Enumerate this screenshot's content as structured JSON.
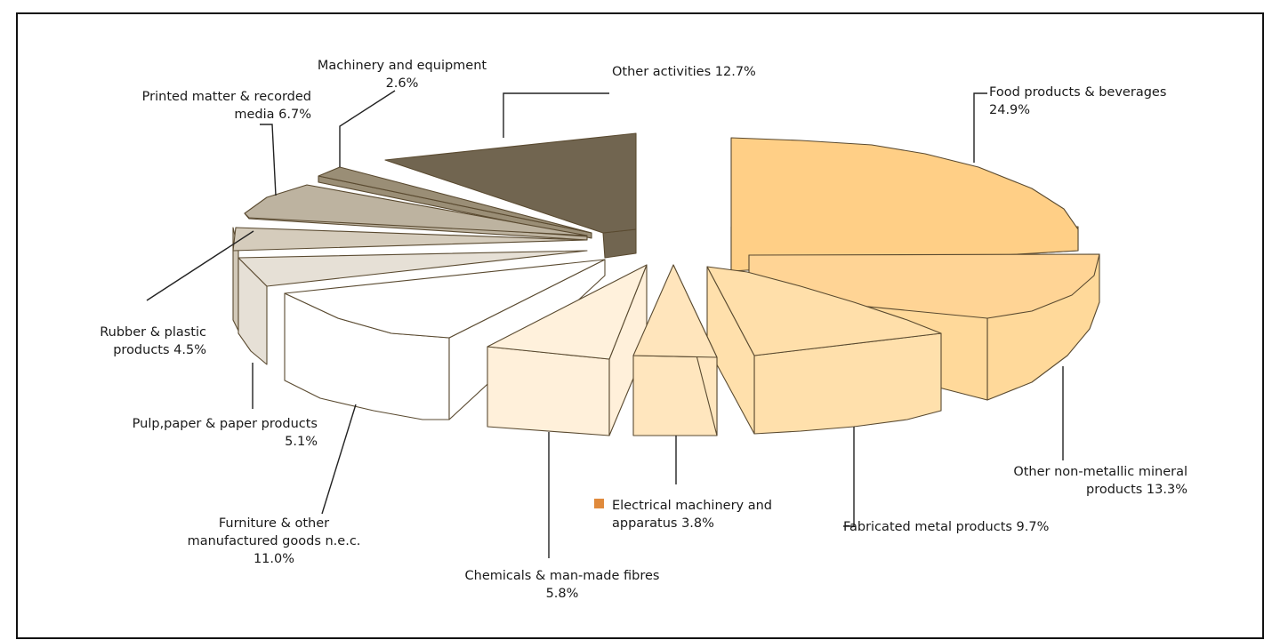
{
  "chart_data": {
    "type": "pie",
    "style": "3d-exploded",
    "unit": "%",
    "slices": [
      {
        "name": "Food products & beverages",
        "value": 24.9,
        "label_lines": [
          "Food products & beverages",
          "24.9%"
        ],
        "color": "#FFCF86",
        "side": "#FFD995"
      },
      {
        "name": "Other non-metallic mineral products",
        "value": 13.3,
        "label_lines": [
          "Other non-metallic mineral",
          "products 13.3%"
        ],
        "color": "#FFD495",
        "side": "#FFD99A"
      },
      {
        "name": "Fabricated metal products",
        "value": 9.7,
        "label_lines": [
          "Fabricated metal products 9.7%"
        ],
        "color": "#FFDFAA",
        "side": "#FFE0AC"
      },
      {
        "name": "Electrical machinery and apparatus",
        "value": 3.8,
        "label_lines": [
          "Electrical machinery and",
          "apparatus 3.8%"
        ],
        "color": "#FFE5BC",
        "side": "#FFE6BE"
      },
      {
        "name": "Chemicals & man-made fibres",
        "value": 5.8,
        "label_lines": [
          "Chemicals & man-made fibres",
          "5.8%"
        ],
        "color": "#FFF1DC",
        "side": "#FFF0DA"
      },
      {
        "name": "Furniture & other manufactured goods n.e.c.",
        "value": 11.0,
        "label_lines": [
          "Furniture & other",
          "manufactured goods n.e.c.",
          "11.0%"
        ],
        "color": "#FFFFFF",
        "side": "#FFFFFF"
      },
      {
        "name": "Pulp,paper & paper products",
        "value": 5.1,
        "label_lines": [
          "Pulp,paper & paper products",
          "5.1%"
        ],
        "color": "#E6E0D6",
        "side": "#E6E0D6"
      },
      {
        "name": "Rubber & plastic products",
        "value": 4.5,
        "label_lines": [
          "Rubber & plastic",
          "products 4.5%"
        ],
        "color": "#D5CCBC",
        "side": "#D2C9B8"
      },
      {
        "name": "Printed matter & recorded media",
        "value": 6.7,
        "label_lines": [
          "Printed matter & recorded",
          "media 6.7%"
        ],
        "color": "#BDB3A0",
        "side": "#BDB3A0"
      },
      {
        "name": "Machinery and equipment",
        "value": 2.6,
        "label_lines": [
          "Machinery and equipment",
          "2.6%"
        ],
        "color": "#9A8E76",
        "side": "#9A8E76"
      },
      {
        "name": "Other activities",
        "value": 12.7,
        "label_lines": [
          "Other activities 12.7%"
        ],
        "color": "#716550",
        "side": "#716550"
      }
    ],
    "legend": {
      "marker_color": "#E08A3C"
    }
  }
}
